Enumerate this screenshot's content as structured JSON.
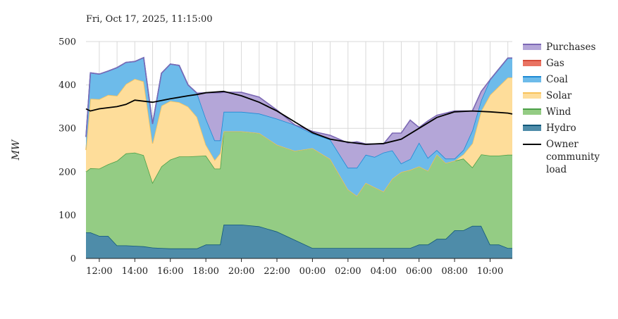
{
  "timestamp": "Fri, Oct 17, 2025, 11:15:00",
  "chart_data": {
    "type": "area",
    "stacked": true,
    "ylabel": "MW",
    "xlabel": "",
    "ylim": [
      0,
      500
    ],
    "yticks": [
      0,
      100,
      200,
      300,
      400,
      500
    ],
    "xlim": [
      11.25,
      35.25
    ],
    "xticks": [
      {
        "value": 12,
        "label": "12:00"
      },
      {
        "value": 14,
        "label": "14:00"
      },
      {
        "value": 16,
        "label": "16:00"
      },
      {
        "value": 18,
        "label": "18:00"
      },
      {
        "value": 20,
        "label": "20:00"
      },
      {
        "value": 22,
        "label": "22:00"
      },
      {
        "value": 24,
        "label": "00:00"
      },
      {
        "value": 26,
        "label": "02:00"
      },
      {
        "value": 28,
        "label": "04:00"
      },
      {
        "value": 30,
        "label": "06:00"
      },
      {
        "value": 32,
        "label": "08:00"
      },
      {
        "value": 34,
        "label": "10:00"
      }
    ],
    "grid": true,
    "legend_position": "right",
    "x": [
      11.25,
      11.5,
      12,
      12.5,
      13,
      13.5,
      14,
      14.5,
      15,
      15.5,
      16,
      16.5,
      17,
      17.5,
      18,
      18.5,
      18.8,
      19,
      19.5,
      20,
      21,
      22,
      23,
      24,
      25,
      26,
      26.5,
      27,
      27.5,
      28,
      28.5,
      29,
      29.5,
      30,
      30.5,
      31,
      31.5,
      32,
      32.5,
      33,
      33.5,
      34,
      34.5,
      35,
      35.25
    ],
    "series": [
      {
        "name": "Hydro",
        "color": "#4e8ca9",
        "line": "#12587a",
        "values": [
          60,
          60,
          52,
          52,
          30,
          30,
          29,
          28,
          25,
          24,
          23,
          23,
          23,
          23,
          32,
          32,
          32,
          78,
          78,
          78,
          74,
          62,
          43,
          24,
          24,
          24,
          24,
          24,
          24,
          24,
          24,
          24,
          24,
          32,
          32,
          45,
          45,
          65,
          65,
          75,
          75,
          32,
          32,
          24,
          24
        ]
      },
      {
        "name": "Wind",
        "color": "#94cc84",
        "line": "#4ca048",
        "values": [
          140,
          148,
          155,
          165,
          195,
          212,
          215,
          210,
          150,
          188,
          205,
          212,
          212,
          213,
          205,
          175,
          175,
          215,
          215,
          215,
          215,
          200,
          205,
          230,
          205,
          135,
          120,
          150,
          140,
          130,
          160,
          175,
          180,
          180,
          170,
          195,
          175,
          160,
          165,
          135,
          165,
          205,
          205,
          215,
          215
        ]
      },
      {
        "name": "Solar",
        "color": "#fedd9a",
        "line": "#f8c25a",
        "values": [
          50,
          160,
          160,
          160,
          150,
          160,
          170,
          170,
          90,
          140,
          135,
          125,
          115,
          90,
          25,
          20,
          35,
          0,
          0,
          0,
          0,
          0,
          0,
          0,
          0,
          0,
          0,
          0,
          0,
          0,
          0,
          0,
          0,
          0,
          0,
          0,
          0,
          0,
          10,
          55,
          100,
          140,
          160,
          178,
          178
        ]
      },
      {
        "name": "Coal",
        "color": "#6dbbea",
        "line": "#1e8ad4",
        "values": [
          30,
          60,
          58,
          55,
          65,
          50,
          40,
          55,
          45,
          75,
          85,
          85,
          50,
          55,
          60,
          45,
          30,
          45,
          45,
          45,
          45,
          60,
          60,
          34,
          45,
          50,
          65,
          65,
          70,
          90,
          65,
          20,
          25,
          55,
          30,
          10,
          10,
          5,
          10,
          30,
          25,
          35,
          40,
          45,
          45
        ]
      },
      {
        "name": "Gas",
        "color": "#e97362",
        "line": "#d64b3a",
        "values": [
          0,
          0,
          0,
          0,
          0,
          0,
          0,
          0,
          0,
          0,
          0,
          0,
          0,
          0,
          0,
          0,
          0,
          0,
          0,
          0,
          0,
          0,
          0,
          0,
          0,
          0,
          0,
          0,
          0,
          0,
          0,
          0,
          0,
          0,
          0,
          0,
          0,
          0,
          0,
          0,
          0,
          0,
          0,
          0,
          0
        ]
      },
      {
        "name": "Purchases",
        "color": "#b4a6d8",
        "line": "#7c68b4",
        "values": [
          0,
          0,
          0,
          0,
          0,
          0,
          0,
          0,
          0,
          0,
          0,
          0,
          0,
          0,
          60,
          110,
          110,
          45,
          45,
          45,
          38,
          20,
          0,
          5,
          10,
          57,
          60,
          25,
          30,
          20,
          40,
          70,
          90,
          35,
          85,
          80,
          105,
          110,
          90,
          45,
          20,
          0,
          0,
          0,
          0
        ]
      }
    ],
    "load": {
      "name": "Owner community load",
      "color": "#000000",
      "x": [
        11.25,
        11.5,
        12,
        13,
        13.5,
        14,
        15,
        16,
        17,
        17.5,
        18,
        19,
        20,
        21,
        22,
        23,
        24,
        25,
        26,
        27,
        28,
        29,
        30,
        31,
        32,
        33,
        34,
        35,
        35.25
      ],
      "values": [
        345,
        340,
        345,
        350,
        355,
        365,
        360,
        368,
        375,
        378,
        382,
        385,
        375,
        360,
        340,
        315,
        290,
        275,
        268,
        263,
        265,
        275,
        300,
        325,
        338,
        340,
        338,
        335,
        333
      ]
    }
  },
  "legend": {
    "items": [
      {
        "label": "Purchases",
        "color": "#b4a6d8",
        "border": "#7c68b4",
        "kind": "area"
      },
      {
        "label": "Gas",
        "color": "#e97362",
        "border": "#d64b3a",
        "kind": "area"
      },
      {
        "label": "Coal",
        "color": "#6dbbea",
        "border": "#1e8ad4",
        "kind": "area"
      },
      {
        "label": "Solar",
        "color": "#fedd9a",
        "border": "#f8c25a",
        "kind": "area"
      },
      {
        "label": "Wind",
        "color": "#94cc84",
        "border": "#4ca048",
        "kind": "area"
      },
      {
        "label": "Hydro",
        "color": "#4e8ca9",
        "border": "#12587a",
        "kind": "area"
      },
      {
        "label": "Owner community load",
        "color": "#000000",
        "kind": "line"
      }
    ]
  }
}
